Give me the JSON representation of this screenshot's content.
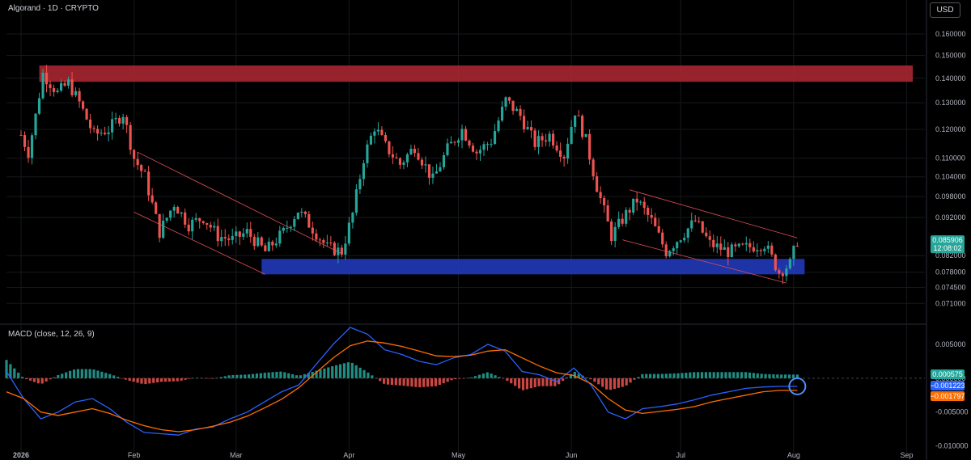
{
  "header": {
    "symbol_line": "Algorand · 1D · CRYPTO",
    "currency": "USD"
  },
  "indicator": {
    "label": "MACD (close, 12, 26, 9)"
  },
  "price_badges": {
    "last_price": "0.085906",
    "countdown": "12:08:02"
  },
  "macd_badges": {
    "histogram": "0.000575",
    "macd": "−0.001223",
    "signal": "−0.001797"
  },
  "colors": {
    "up": "#26a69a",
    "down": "#ef5350",
    "macd_line": "#2962ff",
    "signal_line": "#ff6d00",
    "resistance_zone": "#b22833",
    "support_zone": "#2138b8"
  },
  "chart_data": [
    {
      "type": "candlestick",
      "yscale": "log",
      "yticks": [
        "0.160000",
        "0.150000",
        "0.140000",
        "0.130000",
        "0.120000",
        "0.110000",
        "0.104000",
        "0.098000",
        "0.092000",
        "0.082000",
        "0.078000",
        "0.074500",
        "0.071000"
      ],
      "xticks": [
        "2026",
        "Feb",
        "Mar",
        "Apr",
        "May",
        "Jun",
        "Jul",
        "Aug",
        "Sep"
      ],
      "ylim": [
        0.068,
        0.168
      ],
      "close_path": [
        {
          "date": "2026-01-01",
          "close": 0.118
        },
        {
          "date": "2026-01-03",
          "close": 0.112
        },
        {
          "date": "2026-01-05",
          "close": 0.125
        },
        {
          "date": "2026-01-07",
          "close": 0.142
        },
        {
          "date": "2026-01-09",
          "close": 0.138
        },
        {
          "date": "2026-01-11",
          "close": 0.134
        },
        {
          "date": "2026-01-14",
          "close": 0.138
        },
        {
          "date": "2026-01-17",
          "close": 0.13
        },
        {
          "date": "2026-01-21",
          "close": 0.118
        },
        {
          "date": "2026-01-25",
          "close": 0.12
        },
        {
          "date": "2026-01-29",
          "close": 0.126
        },
        {
          "date": "2026-02-01",
          "close": 0.11
        },
        {
          "date": "2026-02-04",
          "close": 0.104
        },
        {
          "date": "2026-02-08",
          "close": 0.088
        },
        {
          "date": "2026-02-12",
          "close": 0.096
        },
        {
          "date": "2026-02-16",
          "close": 0.09
        },
        {
          "date": "2026-02-20",
          "close": 0.092
        },
        {
          "date": "2026-02-24",
          "close": 0.087
        },
        {
          "date": "2026-02-28",
          "close": 0.086
        },
        {
          "date": "2026-03-04",
          "close": 0.088
        },
        {
          "date": "2026-03-09",
          "close": 0.083
        },
        {
          "date": "2026-03-14",
          "close": 0.088
        },
        {
          "date": "2026-03-18",
          "close": 0.094
        },
        {
          "date": "2026-03-22",
          "close": 0.089
        },
        {
          "date": "2026-03-26",
          "close": 0.084
        },
        {
          "date": "2026-03-30",
          "close": 0.083
        },
        {
          "date": "2026-04-02",
          "close": 0.093
        },
        {
          "date": "2026-04-05",
          "close": 0.11
        },
        {
          "date": "2026-04-08",
          "close": 0.121
        },
        {
          "date": "2026-04-11",
          "close": 0.114
        },
        {
          "date": "2026-04-15",
          "close": 0.108
        },
        {
          "date": "2026-04-19",
          "close": 0.114
        },
        {
          "date": "2026-04-24",
          "close": 0.103
        },
        {
          "date": "2026-04-28",
          "close": 0.113
        },
        {
          "date": "2026-05-02",
          "close": 0.12
        },
        {
          "date": "2026-05-06",
          "close": 0.112
        },
        {
          "date": "2026-05-10",
          "close": 0.116
        },
        {
          "date": "2026-05-14",
          "close": 0.131
        },
        {
          "date": "2026-05-18",
          "close": 0.125
        },
        {
          "date": "2026-05-22",
          "close": 0.115
        },
        {
          "date": "2026-05-26",
          "close": 0.118
        },
        {
          "date": "2026-05-30",
          "close": 0.111
        },
        {
          "date": "2026-06-02",
          "close": 0.127
        },
        {
          "date": "2026-06-05",
          "close": 0.116
        },
        {
          "date": "2026-06-08",
          "close": 0.101
        },
        {
          "date": "2026-06-12",
          "close": 0.087
        },
        {
          "date": "2026-06-16",
          "close": 0.093
        },
        {
          "date": "2026-06-19",
          "close": 0.097
        },
        {
          "date": "2026-06-23",
          "close": 0.091
        },
        {
          "date": "2026-06-27",
          "close": 0.083
        },
        {
          "date": "2026-07-01",
          "close": 0.087
        },
        {
          "date": "2026-07-05",
          "close": 0.091
        },
        {
          "date": "2026-07-09",
          "close": 0.085
        },
        {
          "date": "2026-07-14",
          "close": 0.083
        },
        {
          "date": "2026-07-19",
          "close": 0.084
        },
        {
          "date": "2026-07-24",
          "close": 0.085
        },
        {
          "date": "2026-07-28",
          "close": 0.078
        },
        {
          "date": "2026-07-31",
          "close": 0.08
        },
        {
          "date": "2026-08-02",
          "close": 0.085906
        }
      ]
    },
    {
      "type": "macd",
      "yticks": [
        "0.005000",
        "0.000000",
        "-0.005000",
        "-0.010000"
      ],
      "ylim": [
        -0.011,
        0.0075
      ],
      "macd_path": [
        0.001,
        -0.003,
        -0.006,
        -0.005,
        -0.0035,
        -0.003,
        -0.0045,
        -0.0065,
        -0.008,
        -0.0082,
        -0.0084,
        -0.0075,
        -0.0072,
        -0.006,
        -0.005,
        -0.0035,
        -0.002,
        -0.001,
        0.002,
        0.005,
        0.0075,
        0.0065,
        0.0042,
        0.0035,
        0.0025,
        0.002,
        0.003,
        0.0035,
        0.005,
        0.004,
        0.001,
        0.0005,
        -0.0005,
        0.0015,
        -0.001,
        -0.005,
        -0.006,
        -0.0045,
        -0.0042,
        -0.0038,
        -0.0032,
        -0.0025,
        -0.002,
        -0.0015,
        -0.0013,
        -0.0012,
        -0.0012
      ],
      "signal_path": [
        -0.002,
        -0.003,
        -0.005,
        -0.0055,
        -0.005,
        -0.0045,
        -0.0052,
        -0.0062,
        -0.007,
        -0.0076,
        -0.0079,
        -0.0076,
        -0.0071,
        -0.0065,
        -0.0056,
        -0.0044,
        -0.0031,
        -0.0014,
        0.0008,
        0.003,
        0.0048,
        0.0055,
        0.0052,
        0.0047,
        0.004,
        0.0033,
        0.0032,
        0.0034,
        0.004,
        0.0042,
        0.003,
        0.0018,
        0.0008,
        0.0004,
        -0.0008,
        -0.003,
        -0.0047,
        -0.0052,
        -0.0049,
        -0.0046,
        -0.0042,
        -0.0035,
        -0.003,
        -0.0025,
        -0.002,
        -0.0018,
        -0.0018
      ]
    }
  ]
}
